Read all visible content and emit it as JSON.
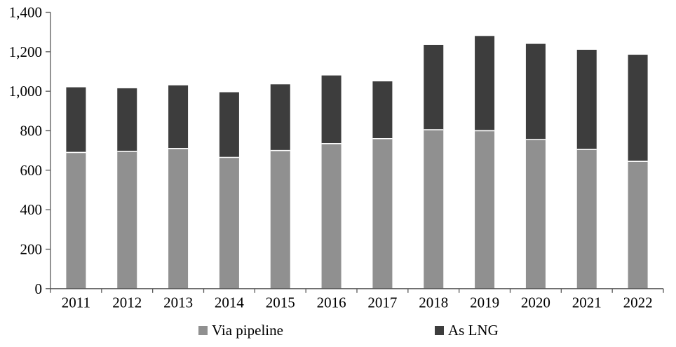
{
  "chart_data": {
    "type": "bar",
    "stacked": true,
    "title": "",
    "xlabel": "",
    "ylabel": "",
    "categories": [
      "2011",
      "2012",
      "2013",
      "2014",
      "2015",
      "2016",
      "2017",
      "2018",
      "2019",
      "2020",
      "2021",
      "2022"
    ],
    "series": [
      {
        "name": "Via pipeline",
        "color": "#909090",
        "values": [
          690,
          695,
          710,
          665,
          700,
          735,
          760,
          805,
          800,
          755,
          705,
          645
        ]
      },
      {
        "name": "As LNG",
        "color": "#3d3d3d",
        "values": [
          330,
          320,
          320,
          330,
          335,
          345,
          290,
          430,
          480,
          485,
          505,
          540
        ]
      }
    ],
    "totals": [
      1020,
      1015,
      1030,
      995,
      1035,
      1080,
      1050,
      1235,
      1280,
      1240,
      1210,
      1185
    ],
    "ylim": [
      0,
      1400
    ],
    "ytick_step": 200,
    "ytick_labels": [
      "0",
      "200",
      "400",
      "600",
      "800",
      "1,000",
      "1,200",
      "1,400"
    ],
    "grid": false,
    "legend_position": "bottom",
    "axis_color": "#595959",
    "separator_color": "#ffffff",
    "background": "#ffffff"
  }
}
